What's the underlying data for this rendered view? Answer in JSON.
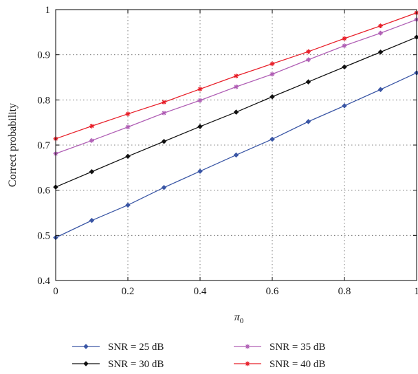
{
  "chart_data": {
    "type": "line",
    "xlabel": "π",
    "xlabel_subscript": "0",
    "ylabel": "Correct probability",
    "xlim": [
      0,
      1
    ],
    "ylim": [
      0.4,
      1
    ],
    "xticks": [
      0,
      0.2,
      0.4,
      0.6,
      0.8,
      1
    ],
    "xtick_labels": [
      "0",
      "0.2",
      "0.4",
      "0.6",
      "0.8",
      "1"
    ],
    "yticks": [
      0.4,
      0.5,
      0.6,
      0.7,
      0.8,
      0.9,
      1
    ],
    "ytick_labels": [
      "0.4",
      "0.5",
      "0.6",
      "0.7",
      "0.8",
      "0.9",
      "1"
    ],
    "grid": true,
    "legend_position": "below",
    "x": [
      0,
      0.1,
      0.2,
      0.3,
      0.4,
      0.5,
      0.6,
      0.7,
      0.8,
      0.9,
      1.0
    ],
    "series": [
      {
        "name": "SNR = 25 dB",
        "color": "#3a56a5",
        "marker": "diamond",
        "values": [
          0.495,
          0.533,
          0.567,
          0.606,
          0.642,
          0.678,
          0.713,
          0.752,
          0.787,
          0.823,
          0.86
        ]
      },
      {
        "name": "SNR = 30 dB",
        "color": "#111111",
        "marker": "diamond",
        "values": [
          0.607,
          0.641,
          0.675,
          0.708,
          0.741,
          0.773,
          0.807,
          0.84,
          0.873,
          0.906,
          0.939
        ]
      },
      {
        "name": "SNR = 35 dB",
        "color": "#b05fb5",
        "marker": "star",
        "values": [
          0.681,
          0.71,
          0.74,
          0.771,
          0.799,
          0.829,
          0.857,
          0.889,
          0.92,
          0.948,
          0.978
        ]
      },
      {
        "name": "SNR = 40 dB",
        "color": "#e8202a",
        "marker": "star",
        "values": [
          0.714,
          0.742,
          0.769,
          0.795,
          0.824,
          0.853,
          0.88,
          0.907,
          0.936,
          0.964,
          0.993
        ]
      }
    ]
  }
}
